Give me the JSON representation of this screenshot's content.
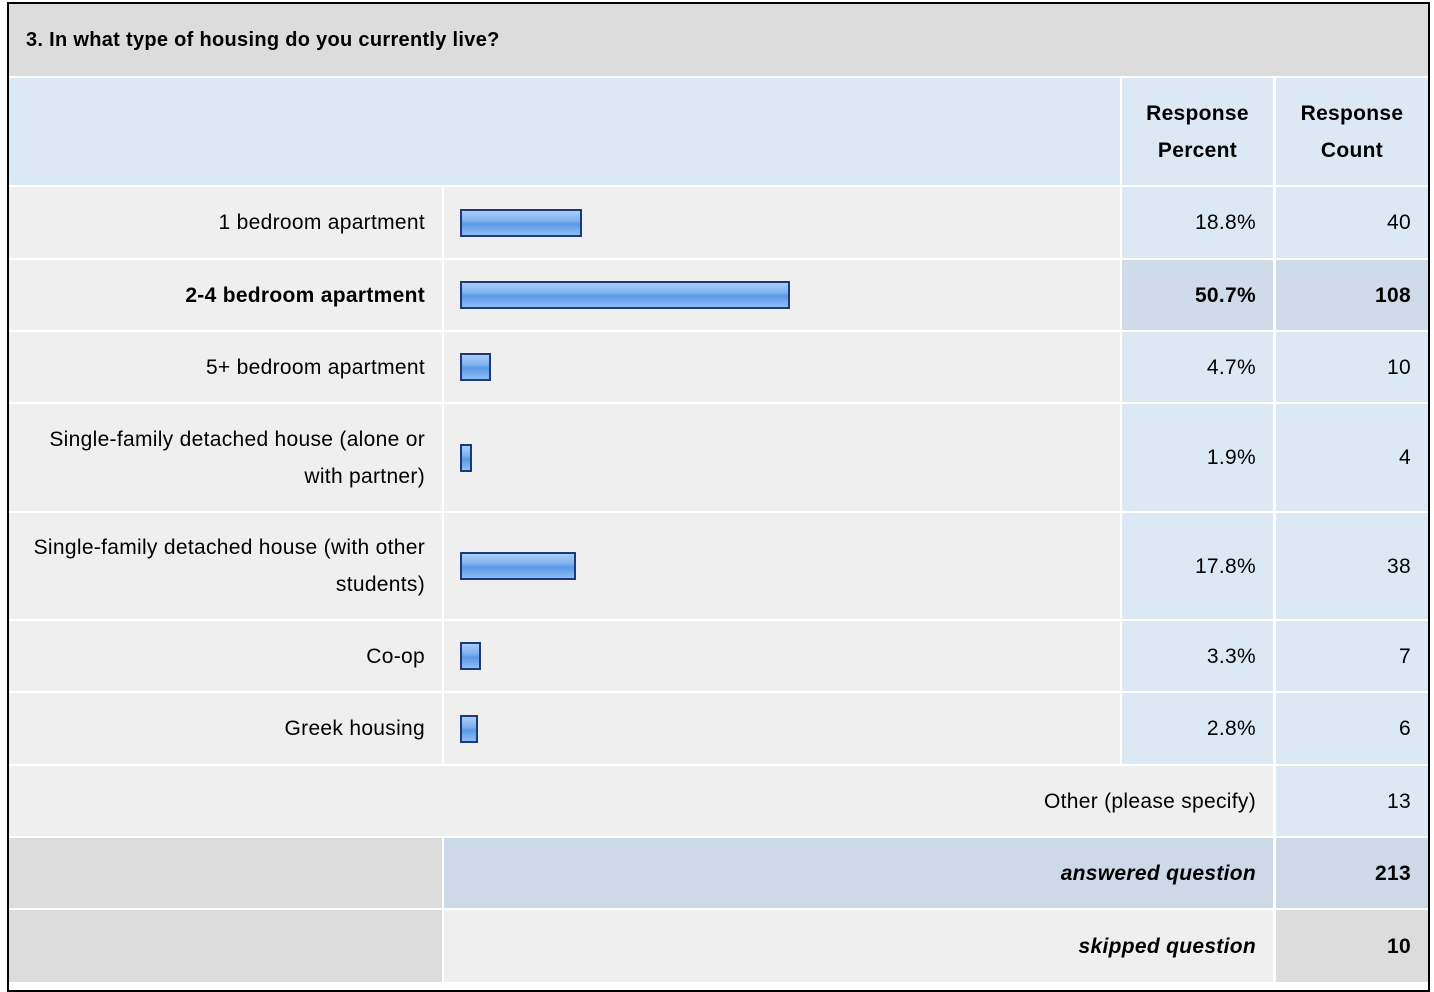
{
  "title": "3. In what type of housing do you currently live?",
  "columns": [
    "Response Percent",
    "Response Count"
  ],
  "rows": [
    {
      "label": "1 bedroom apartment",
      "percent": 18.8,
      "percent_label": "18.8%",
      "count": 40
    },
    {
      "label": "2-4 bedroom apartment",
      "percent": 50.7,
      "percent_label": "50.7%",
      "count": 108,
      "bold": true
    },
    {
      "label": "5+ bedroom apartment",
      "percent": 4.7,
      "percent_label": "4.7%",
      "count": 10
    },
    {
      "label": "Single-family detached house (alone or with partner)",
      "percent": 1.9,
      "percent_label": "1.9%",
      "count": 4
    },
    {
      "label": "Single-family detached house (with other students)",
      "percent": 17.8,
      "percent_label": "17.8%",
      "count": 38
    },
    {
      "label": "Co-op",
      "percent": 3.3,
      "percent_label": "3.3%",
      "count": 7
    },
    {
      "label": "Greek housing",
      "percent": 2.8,
      "percent_label": "2.8%",
      "count": 6
    }
  ],
  "other": {
    "label": "Other (please specify)",
    "count": 13
  },
  "answered": {
    "label": "answered question",
    "count": 213
  },
  "skipped": {
    "label": "skipped question",
    "count": 10
  }
}
